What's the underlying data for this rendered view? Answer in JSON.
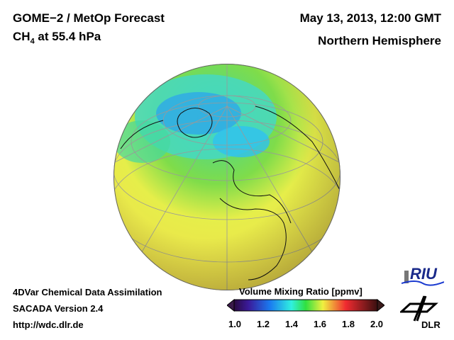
{
  "header": {
    "title": "GOME−2 / MetOp Forecast",
    "species": "CH",
    "species_sub": "4",
    "level": " at 55.4 hPa",
    "datetime": "May 13, 2013, 12:00 GMT",
    "region": "Northern Hemisphere"
  },
  "footer": {
    "line1": "4DVar Chemical Data Assimilation",
    "line2": "SACADA Version 2.4",
    "url": "http://wdc.dlr.de"
  },
  "colorbar": {
    "title": "Volume Mixing Ratio [ppmv]",
    "ticks": [
      "1.0",
      "1.2",
      "1.4",
      "1.6",
      "1.8",
      "2.0"
    ],
    "min": 1.0,
    "max": 2.0
  },
  "logos": {
    "riu": "RIU",
    "dlr": "DLR"
  }
}
